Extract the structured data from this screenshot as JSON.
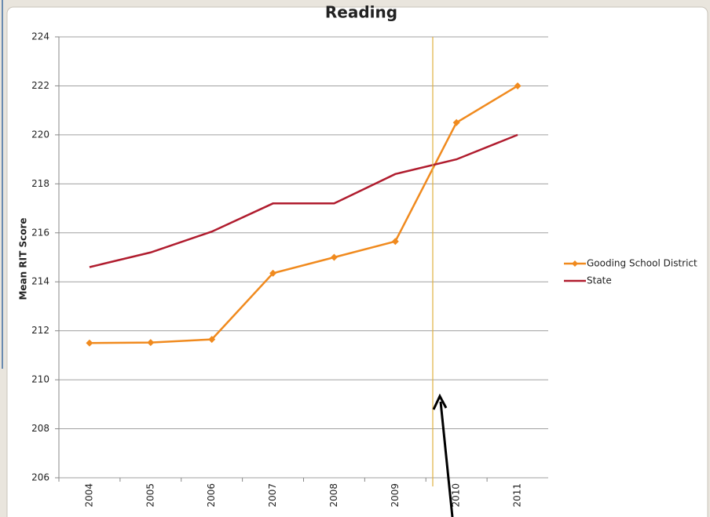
{
  "chart_data": {
    "type": "line",
    "title": "Reading",
    "y_label": "Mean RIT Score",
    "categories": [
      "2004",
      "2005",
      "2006",
      "2007",
      "2008",
      "2009",
      "2010",
      "2011"
    ],
    "series": [
      {
        "name": "Gooding School District",
        "color": "#f08a1e",
        "values": [
          211.5,
          211.52,
          211.65,
          214.35,
          215.0,
          215.65,
          220.5,
          222.0
        ]
      },
      {
        "name": "State",
        "color": "#b01c2e",
        "values": [
          214.6,
          215.2,
          216.05,
          217.2,
          217.2,
          218.4,
          219.0,
          220.0
        ]
      }
    ],
    "ylim": [
      206,
      224
    ],
    "yticks": [
      206,
      208,
      210,
      212,
      214,
      216,
      218,
      220,
      222,
      224
    ],
    "grid": true,
    "legend": "right"
  }
}
